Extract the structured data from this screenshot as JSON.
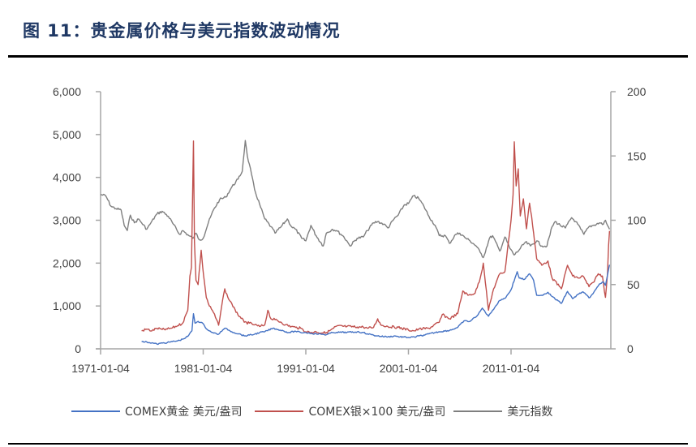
{
  "title": "图 11：贵金属价格与美元指数波动情况",
  "chart_data": {
    "type": "line",
    "title": "贵金属价格与美元指数波动情况",
    "xlabel": "",
    "ylabel_left": "",
    "ylabel_right": "",
    "x_ticks": [
      "1971-01-04",
      "1981-01-04",
      "1991-01-04",
      "2001-01-04",
      "2011-01-04"
    ],
    "y_left_ticks": [
      "0",
      "1,000",
      "2,000",
      "3,000",
      "4,000",
      "5,000",
      "6,000"
    ],
    "y_right_ticks": [
      "0",
      "50",
      "100",
      "150",
      "200"
    ],
    "ylim_left": [
      0,
      6000
    ],
    "ylim_right": [
      0,
      200
    ],
    "x_range": [
      1971.0,
      2020.6
    ],
    "grid": false,
    "legend_position": "bottom",
    "series": [
      {
        "name": "COMEX黄金 美元/盎司",
        "axis": "left",
        "color": "#4472c4",
        "points": [
          [
            1975.0,
            165
          ],
          [
            1975.5,
            160
          ],
          [
            1976.0,
            140
          ],
          [
            1976.5,
            110
          ],
          [
            1977.0,
            135
          ],
          [
            1977.5,
            145
          ],
          [
            1978.0,
            170
          ],
          [
            1978.5,
            185
          ],
          [
            1979.0,
            225
          ],
          [
            1979.5,
            290
          ],
          [
            1979.9,
            420
          ],
          [
            1980.05,
            820
          ],
          [
            1980.2,
            600
          ],
          [
            1980.5,
            640
          ],
          [
            1980.9,
            610
          ],
          [
            1981.2,
            500
          ],
          [
            1981.6,
            420
          ],
          [
            1982.0,
            370
          ],
          [
            1982.5,
            340
          ],
          [
            1982.9,
            440
          ],
          [
            1983.2,
            480
          ],
          [
            1983.6,
            420
          ],
          [
            1984.0,
            380
          ],
          [
            1984.5,
            350
          ],
          [
            1985.0,
            300
          ],
          [
            1985.5,
            320
          ],
          [
            1986.0,
            340
          ],
          [
            1986.5,
            380
          ],
          [
            1987.0,
            400
          ],
          [
            1987.8,
            480
          ],
          [
            1988.3,
            450
          ],
          [
            1988.8,
            420
          ],
          [
            1989.3,
            380
          ],
          [
            1990.0,
            410
          ],
          [
            1990.5,
            380
          ],
          [
            1991.0,
            380
          ],
          [
            1991.6,
            360
          ],
          [
            1992.0,
            350
          ],
          [
            1992.6,
            340
          ],
          [
            1993.0,
            330
          ],
          [
            1993.6,
            380
          ],
          [
            1994.0,
            385
          ],
          [
            1995.0,
            385
          ],
          [
            1996.0,
            395
          ],
          [
            1996.6,
            380
          ],
          [
            1997.0,
            350
          ],
          [
            1997.6,
            320
          ],
          [
            1998.0,
            300
          ],
          [
            1999.0,
            280
          ],
          [
            1999.7,
            300
          ],
          [
            2000.0,
            285
          ],
          [
            2001.0,
            265
          ],
          [
            2001.6,
            275
          ],
          [
            2002.0,
            300
          ],
          [
            2002.6,
            320
          ],
          [
            2003.0,
            350
          ],
          [
            2004.0,
            400
          ],
          [
            2005.0,
            430
          ],
          [
            2005.8,
            500
          ],
          [
            2006.4,
            650
          ],
          [
            2007.0,
            640
          ],
          [
            2007.8,
            800
          ],
          [
            2008.2,
            950
          ],
          [
            2008.8,
            760
          ],
          [
            2009.2,
            900
          ],
          [
            2009.9,
            1130
          ],
          [
            2010.5,
            1200
          ],
          [
            2011.0,
            1380
          ],
          [
            2011.6,
            1800
          ],
          [
            2011.8,
            1650
          ],
          [
            2012.3,
            1620
          ],
          [
            2012.8,
            1750
          ],
          [
            2013.2,
            1600
          ],
          [
            2013.5,
            1250
          ],
          [
            2014.0,
            1250
          ],
          [
            2014.6,
            1320
          ],
          [
            2015.0,
            1220
          ],
          [
            2015.9,
            1060
          ],
          [
            2016.5,
            1340
          ],
          [
            2017.0,
            1170
          ],
          [
            2017.6,
            1280
          ],
          [
            2018.0,
            1330
          ],
          [
            2018.6,
            1190
          ],
          [
            2019.0,
            1290
          ],
          [
            2019.6,
            1510
          ],
          [
            2020.0,
            1560
          ],
          [
            2020.2,
            1480
          ],
          [
            2020.4,
            1720
          ],
          [
            2020.6,
            1960
          ]
        ]
      },
      {
        "name": "COMEX银×100 美元/盎司",
        "axis": "left",
        "color": "#c0504d",
        "points": [
          [
            1975.0,
            420
          ],
          [
            1975.5,
            460
          ],
          [
            1976.0,
            420
          ],
          [
            1976.5,
            480
          ],
          [
            1977.0,
            450
          ],
          [
            1977.5,
            460
          ],
          [
            1978.0,
            490
          ],
          [
            1978.5,
            540
          ],
          [
            1979.0,
            600
          ],
          [
            1979.5,
            900
          ],
          [
            1979.7,
            1700
          ],
          [
            1979.85,
            1900
          ],
          [
            1979.95,
            3300
          ],
          [
            1980.05,
            4850
          ],
          [
            1980.15,
            2500
          ],
          [
            1980.3,
            1600
          ],
          [
            1980.5,
            1500
          ],
          [
            1980.8,
            2300
          ],
          [
            1980.95,
            1900
          ],
          [
            1981.3,
            1200
          ],
          [
            1981.6,
            1000
          ],
          [
            1982.0,
            850
          ],
          [
            1982.5,
            550
          ],
          [
            1982.8,
            1000
          ],
          [
            1983.1,
            1400
          ],
          [
            1983.4,
            1200
          ],
          [
            1983.8,
            1050
          ],
          [
            1984.2,
            850
          ],
          [
            1984.6,
            750
          ],
          [
            1985.0,
            620
          ],
          [
            1985.5,
            600
          ],
          [
            1986.0,
            560
          ],
          [
            1986.5,
            520
          ],
          [
            1987.0,
            560
          ],
          [
            1987.3,
            900
          ],
          [
            1987.6,
            700
          ],
          [
            1988.0,
            680
          ],
          [
            1988.6,
            620
          ],
          [
            1989.0,
            560
          ],
          [
            1989.6,
            520
          ],
          [
            1990.0,
            500
          ],
          [
            1990.5,
            480
          ],
          [
            1991.0,
            400
          ],
          [
            1991.6,
            380
          ],
          [
            1992.0,
            400
          ],
          [
            1992.6,
            370
          ],
          [
            1993.0,
            380
          ],
          [
            1993.3,
            420
          ],
          [
            1993.7,
            480
          ],
          [
            1994.0,
            530
          ],
          [
            1995.0,
            520
          ],
          [
            1996.0,
            510
          ],
          [
            1996.6,
            510
          ],
          [
            1997.0,
            480
          ],
          [
            1997.6,
            500
          ],
          [
            1998.0,
            700
          ],
          [
            1998.3,
            560
          ],
          [
            1999.0,
            520
          ],
          [
            2000.0,
            500
          ],
          [
            2001.0,
            440
          ],
          [
            2001.6,
            420
          ],
          [
            2002.0,
            460
          ],
          [
            2003.0,
            480
          ],
          [
            2004.0,
            620
          ],
          [
            2004.3,
            800
          ],
          [
            2005.0,
            700
          ],
          [
            2005.8,
            820
          ],
          [
            2006.3,
            1350
          ],
          [
            2006.8,
            1250
          ],
          [
            2007.5,
            1300
          ],
          [
            2008.0,
            1650
          ],
          [
            2008.3,
            2000
          ],
          [
            2008.8,
            900
          ],
          [
            2009.3,
            1400
          ],
          [
            2009.9,
            1750
          ],
          [
            2010.4,
            1800
          ],
          [
            2010.8,
            2600
          ],
          [
            2011.0,
            3000
          ],
          [
            2011.2,
            3600
          ],
          [
            2011.32,
            4830
          ],
          [
            2011.5,
            3800
          ],
          [
            2011.7,
            4200
          ],
          [
            2011.9,
            3100
          ],
          [
            2012.2,
            3500
          ],
          [
            2012.5,
            2800
          ],
          [
            2012.8,
            3400
          ],
          [
            2013.0,
            3100
          ],
          [
            2013.5,
            2100
          ],
          [
            2014.0,
            1950
          ],
          [
            2014.6,
            2050
          ],
          [
            2015.0,
            1650
          ],
          [
            2015.9,
            1400
          ],
          [
            2016.5,
            1950
          ],
          [
            2017.0,
            1700
          ],
          [
            2017.6,
            1650
          ],
          [
            2018.0,
            1700
          ],
          [
            2018.6,
            1450
          ],
          [
            2019.0,
            1550
          ],
          [
            2019.5,
            1750
          ],
          [
            2019.9,
            1700
          ],
          [
            2020.2,
            1200
          ],
          [
            2020.4,
            1750
          ],
          [
            2020.5,
            2400
          ],
          [
            2020.6,
            2750
          ]
        ]
      },
      {
        "name": "美元指数",
        "axis": "right",
        "color": "#7f7f7f",
        "points": [
          [
            1971.0,
            120
          ],
          [
            1971.5,
            119
          ],
          [
            1972.0,
            111
          ],
          [
            1972.5,
            109
          ],
          [
            1973.0,
            108
          ],
          [
            1973.3,
            96
          ],
          [
            1973.6,
            92
          ],
          [
            1973.9,
            104
          ],
          [
            1974.3,
            98
          ],
          [
            1974.7,
            101
          ],
          [
            1975.0,
            98
          ],
          [
            1975.5,
            93
          ],
          [
            1975.9,
            98
          ],
          [
            1976.5,
            105
          ],
          [
            1977.0,
            107
          ],
          [
            1977.6,
            103
          ],
          [
            1978.0,
            98
          ],
          [
            1978.7,
            89
          ],
          [
            1979.0,
            92
          ],
          [
            1979.6,
            88
          ],
          [
            1980.0,
            86
          ],
          [
            1980.3,
            90
          ],
          [
            1980.6,
            85
          ],
          [
            1981.0,
            86
          ],
          [
            1981.5,
            98
          ],
          [
            1982.0,
            108
          ],
          [
            1982.6,
            116
          ],
          [
            1983.2,
            118
          ],
          [
            1983.8,
            126
          ],
          [
            1984.4,
            132
          ],
          [
            1984.8,
            138
          ],
          [
            1985.1,
            162
          ],
          [
            1985.3,
            150
          ],
          [
            1985.7,
            136
          ],
          [
            1986.0,
            124
          ],
          [
            1986.6,
            110
          ],
          [
            1987.0,
            101
          ],
          [
            1987.6,
            95
          ],
          [
            1988.0,
            90
          ],
          [
            1988.6,
            95
          ],
          [
            1989.2,
            101
          ],
          [
            1989.6,
            95
          ],
          [
            1990.0,
            93
          ],
          [
            1990.6,
            86
          ],
          [
            1991.0,
            84
          ],
          [
            1991.5,
            96
          ],
          [
            1992.0,
            88
          ],
          [
            1992.7,
            80
          ],
          [
            1993.0,
            90
          ],
          [
            1993.6,
            93
          ],
          [
            1994.0,
            92
          ],
          [
            1994.6,
            88
          ],
          [
            1995.0,
            84
          ],
          [
            1995.3,
            80
          ],
          [
            1996.0,
            86
          ],
          [
            1996.6,
            87
          ],
          [
            1997.0,
            92
          ],
          [
            1997.6,
            98
          ],
          [
            1998.0,
            99
          ],
          [
            1998.6,
            97
          ],
          [
            1999.0,
            94
          ],
          [
            1999.6,
            101
          ],
          [
            2000.0,
            104
          ],
          [
            2000.6,
            112
          ],
          [
            2001.0,
            113
          ],
          [
            2001.5,
            119
          ],
          [
            2002.0,
            117
          ],
          [
            2002.5,
            111
          ],
          [
            2003.0,
            103
          ],
          [
            2003.6,
            96
          ],
          [
            2004.0,
            88
          ],
          [
            2004.6,
            88
          ],
          [
            2005.0,
            82
          ],
          [
            2005.6,
            89
          ],
          [
            2006.0,
            90
          ],
          [
            2006.6,
            86
          ],
          [
            2007.0,
            84
          ],
          [
            2007.6,
            80
          ],
          [
            2008.0,
            75
          ],
          [
            2008.3,
            71
          ],
          [
            2008.9,
            86
          ],
          [
            2009.2,
            88
          ],
          [
            2009.9,
            76
          ],
          [
            2010.4,
            87
          ],
          [
            2010.9,
            78
          ],
          [
            2011.3,
            73
          ],
          [
            2011.8,
            77
          ],
          [
            2012.4,
            83
          ],
          [
            2012.9,
            80
          ],
          [
            2013.5,
            84
          ],
          [
            2014.0,
            80
          ],
          [
            2014.5,
            80
          ],
          [
            2015.0,
            95
          ],
          [
            2015.3,
            99
          ],
          [
            2015.8,
            96
          ],
          [
            2016.3,
            94
          ],
          [
            2016.9,
            102
          ],
          [
            2017.3,
            99
          ],
          [
            2017.8,
            93
          ],
          [
            2018.1,
            89
          ],
          [
            2018.6,
            95
          ],
          [
            2019.0,
            96
          ],
          [
            2019.6,
            98
          ],
          [
            2020.0,
            97
          ],
          [
            2020.2,
            100
          ],
          [
            2020.4,
            96
          ],
          [
            2020.6,
            93
          ]
        ]
      }
    ]
  },
  "legend": [
    {
      "label": "COMEX黄金 美元/盎司",
      "color": "#4472c4"
    },
    {
      "label": "COMEX银×100 美元/盎司",
      "color": "#c0504d"
    },
    {
      "label": "美元指数",
      "color": "#7f7f7f"
    }
  ]
}
